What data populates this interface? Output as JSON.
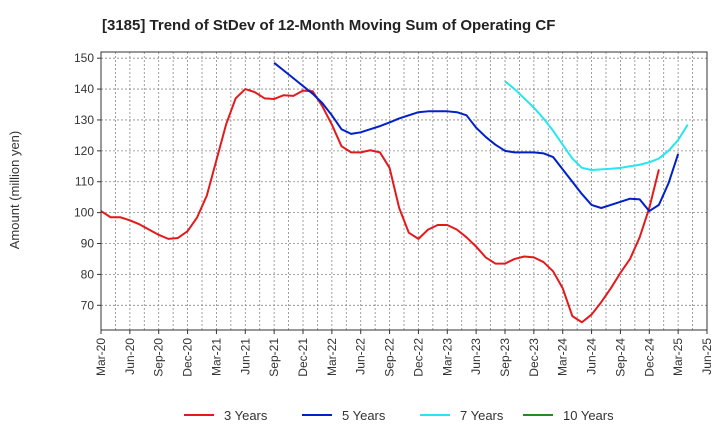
{
  "chart_data": {
    "type": "line",
    "title": "[3185]  Trend of StDev of 12-Month Moving Sum of Operating CF",
    "xlabel": "",
    "ylabel": "Amount (million yen)",
    "ylim": [
      62,
      152
    ],
    "yticks": [
      70,
      80,
      90,
      100,
      110,
      120,
      130,
      140,
      150
    ],
    "x_tick_labels": [
      "Mar-20",
      "Jun-20",
      "Sep-20",
      "Dec-20",
      "Mar-21",
      "Jun-21",
      "Sep-21",
      "Dec-21",
      "Mar-22",
      "Jun-22",
      "Sep-22",
      "Dec-22",
      "Mar-23",
      "Jun-23",
      "Sep-23",
      "Dec-23",
      "Mar-24",
      "Jun-24",
      "Sep-24",
      "Dec-24",
      "Mar-25",
      "Jun-25"
    ],
    "x_index_range": [
      0,
      63
    ],
    "grid": true,
    "legend_position": "bottom",
    "series": [
      {
        "name": "3 Years",
        "color": "#e31a1c",
        "start_index": 0,
        "values": [
          100.5,
          98.5,
          98.5,
          97.5,
          96.2,
          94.5,
          92.8,
          91.5,
          91.8,
          94.0,
          98.5,
          105.5,
          117.0,
          128.5,
          137.0,
          140.0,
          139.0,
          137.0,
          136.8,
          138.0,
          137.8,
          139.5,
          139.3,
          134.5,
          128.5,
          121.5,
          119.5,
          119.5,
          120.2,
          119.5,
          114.5,
          101.5,
          93.5,
          91.5,
          94.5,
          96.0,
          96.0,
          94.5,
          92.0,
          89.0,
          85.5,
          83.5,
          83.5,
          85.0,
          85.8,
          85.5,
          84.0,
          81.0,
          75.5,
          66.5,
          64.5,
          67.0,
          71.0,
          75.5,
          80.5,
          85.0,
          92.0,
          101.5,
          114.0
        ]
      },
      {
        "name": "5 Years",
        "color": "#0020c8",
        "start_index": 18,
        "values": [
          148.5,
          146.0,
          143.5,
          141.0,
          138.5,
          135.5,
          131.5,
          127.0,
          125.5,
          126.0,
          127.0,
          128.0,
          129.2,
          130.5,
          131.5,
          132.5,
          132.8,
          132.8,
          132.8,
          132.5,
          131.5,
          127.5,
          124.5,
          122.0,
          120.0,
          119.5,
          119.5,
          119.5,
          119.2,
          118.0,
          114.0,
          110.0,
          106.0,
          102.5,
          101.5,
          102.5,
          103.5,
          104.5,
          104.3,
          100.5,
          102.5,
          109.5,
          119.0
        ]
      },
      {
        "name": "7 Years",
        "color": "#28e6f0",
        "start_index": 42,
        "values": [
          142.5,
          140.0,
          137.0,
          134.0,
          130.5,
          126.5,
          122.0,
          117.5,
          114.5,
          113.8,
          114.0,
          114.2,
          114.5,
          115.0,
          115.5,
          116.3,
          117.5,
          120.0,
          123.5,
          128.5
        ]
      },
      {
        "name": "10 Years",
        "color": "#228b22",
        "start_index": 0,
        "values": []
      }
    ]
  }
}
